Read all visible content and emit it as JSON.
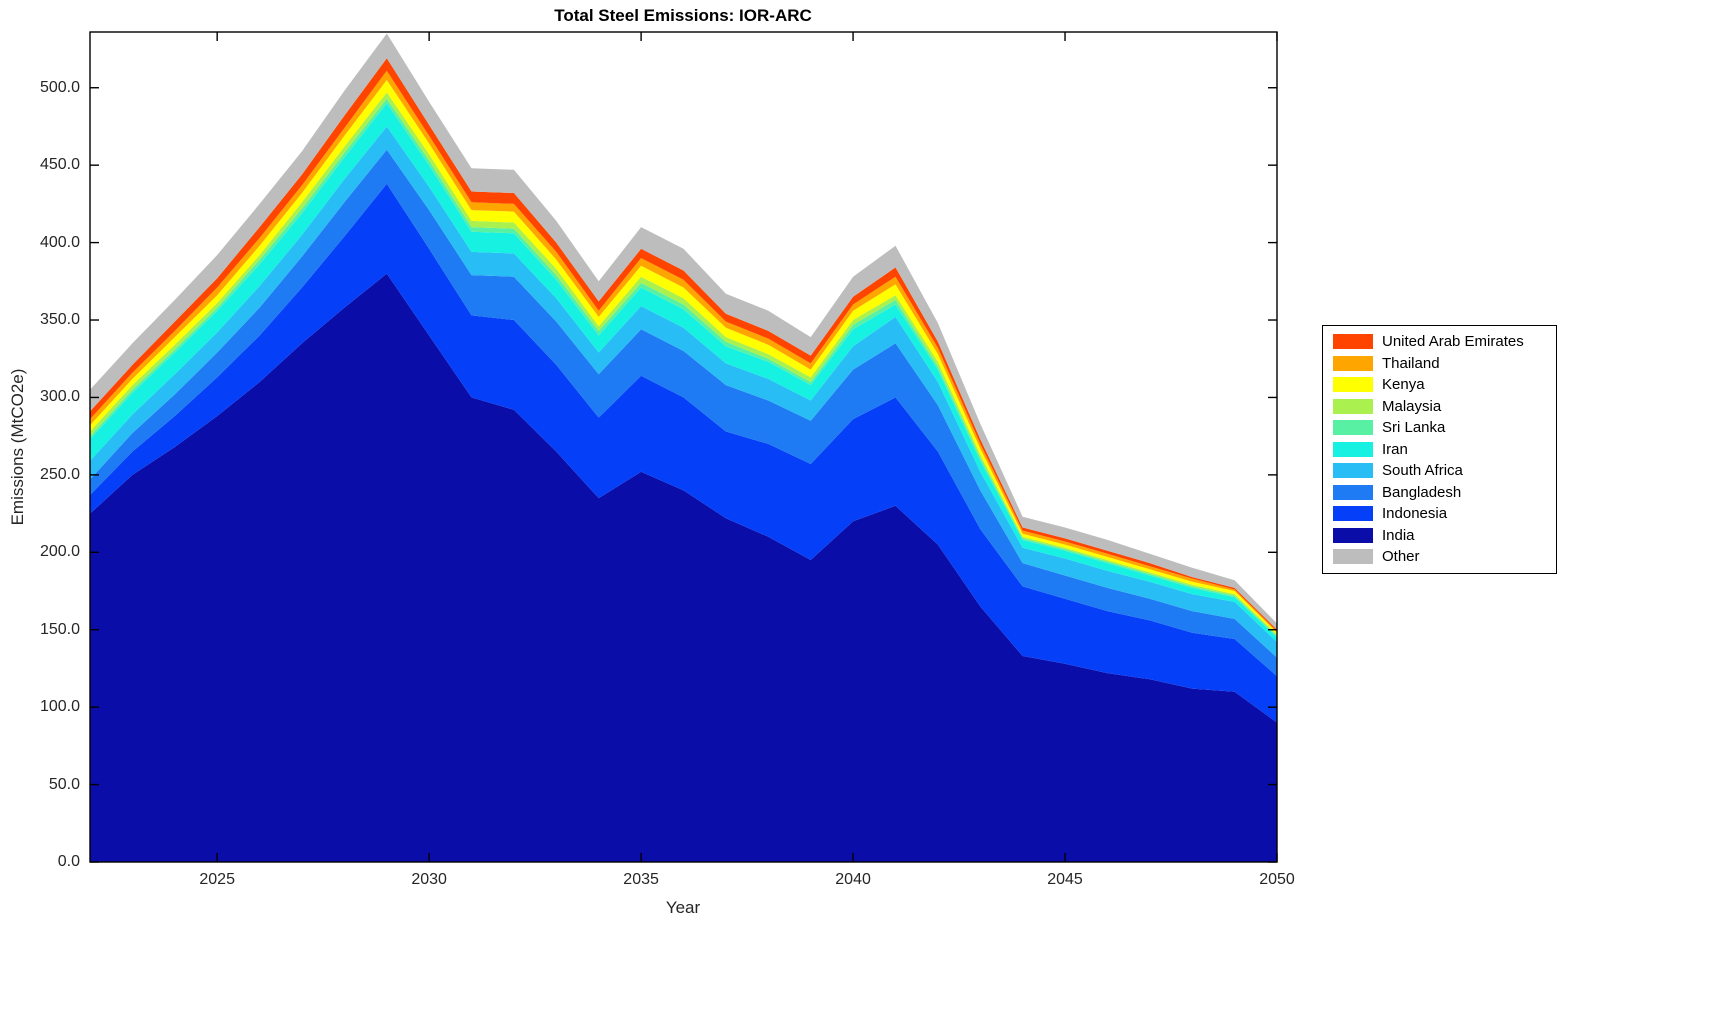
{
  "chart_data": {
    "type": "area",
    "stacked": true,
    "title": "Total Steel Emissions: IOR-ARC",
    "xlabel": "Year",
    "ylabel": "Emissions (MtCO2e)",
    "xlim": [
      2022,
      2050
    ],
    "ylim": [
      0,
      536
    ],
    "grid": false,
    "xticks": [
      2025,
      2030,
      2035,
      2040,
      2045,
      2050
    ],
    "yticks": [
      0,
      50,
      100,
      150,
      200,
      250,
      300,
      350,
      400,
      450,
      500
    ],
    "ytick_labels": [
      "0.0",
      "50.0",
      "100.0",
      "150.0",
      "200.0",
      "250.0",
      "300.0",
      "350.0",
      "400.0",
      "450.0",
      "500.0"
    ],
    "x": [
      2022,
      2023,
      2024,
      2025,
      2026,
      2027,
      2028,
      2029,
      2030,
      2031,
      2032,
      2033,
      2034,
      2035,
      2036,
      2037,
      2038,
      2039,
      2040,
      2041,
      2042,
      2043,
      2044,
      2045,
      2046,
      2047,
      2048,
      2049,
      2050
    ],
    "series": [
      {
        "name": "India",
        "color": "#0b0da8",
        "values": [
          225,
          250,
          268,
          288,
          310,
          335,
          358,
          380,
          340,
          300,
          292,
          265,
          235,
          252,
          240,
          222,
          210,
          195,
          220,
          230,
          205,
          165,
          133,
          128,
          122,
          118,
          112,
          110,
          90
        ]
      },
      {
        "name": "Indonesia",
        "color": "#0540f8",
        "values": [
          12,
          15,
          20,
          25,
          30,
          36,
          46,
          58,
          56,
          53,
          58,
          56,
          52,
          62,
          60,
          56,
          60,
          62,
          66,
          70,
          60,
          50,
          45,
          42,
          40,
          38,
          36,
          34,
          30
        ]
      },
      {
        "name": "Bangladesh",
        "color": "#1e7bf4",
        "values": [
          10,
          12,
          14,
          16,
          18,
          20,
          22,
          22,
          25,
          26,
          28,
          28,
          28,
          30,
          30,
          30,
          28,
          28,
          32,
          35,
          30,
          25,
          15,
          15,
          15,
          14,
          14,
          13,
          12
        ]
      },
      {
        "name": "South Africa",
        "color": "#29bdf6",
        "values": [
          12,
          12,
          13,
          13,
          14,
          14,
          15,
          15,
          15,
          15,
          15,
          15,
          14,
          15,
          15,
          14,
          14,
          13,
          15,
          17,
          15,
          12,
          10,
          11,
          11,
          11,
          11,
          11,
          10
        ]
      },
      {
        "name": "Iran",
        "color": "#17f1e2",
        "values": [
          14,
          14,
          14,
          14,
          14,
          14,
          14,
          15,
          14,
          13,
          13,
          12,
          11,
          12,
          12,
          11,
          11,
          10,
          11,
          8,
          8,
          7,
          5,
          5,
          5,
          4,
          4,
          3,
          3
        ]
      },
      {
        "name": "Sri Lanka",
        "color": "#58f1a4",
        "values": [
          2,
          2,
          2,
          2,
          3,
          3,
          3,
          3,
          3,
          3,
          3,
          3,
          3,
          3,
          3,
          3,
          2,
          2,
          3,
          3,
          2,
          2,
          1,
          1,
          1,
          1,
          1,
          1,
          1
        ]
      },
      {
        "name": "Malaysia",
        "color": "#aaf04e",
        "values": [
          3,
          3,
          3,
          3,
          3,
          4,
          4,
          4,
          4,
          4,
          4,
          4,
          3,
          4,
          4,
          3,
          3,
          3,
          3,
          3,
          3,
          2,
          1,
          1,
          1,
          1,
          1,
          1,
          1
        ]
      },
      {
        "name": "Kenya",
        "color": "#ffff00",
        "values": [
          4,
          4,
          5,
          5,
          6,
          6,
          7,
          8,
          7,
          7,
          7,
          6,
          6,
          7,
          7,
          6,
          6,
          5,
          6,
          7,
          5,
          4,
          2,
          2,
          2,
          2,
          2,
          2,
          1
        ]
      },
      {
        "name": "Thailand",
        "color": "#ffa500",
        "values": [
          4,
          4,
          4,
          5,
          5,
          5,
          5,
          6,
          5,
          5,
          5,
          5,
          4,
          5,
          5,
          4,
          4,
          4,
          4,
          5,
          4,
          3,
          2,
          2,
          2,
          2,
          2,
          1,
          1
        ]
      },
      {
        "name": "United Arab Emirates",
        "color": "#ff4400",
        "values": [
          5,
          5,
          6,
          6,
          7,
          7,
          8,
          8,
          7,
          7,
          7,
          6,
          6,
          6,
          6,
          5,
          5,
          5,
          5,
          6,
          4,
          3,
          2,
          2,
          2,
          2,
          1,
          1,
          1
        ]
      },
      {
        "name": "Other",
        "color": "#bdbdbd",
        "values": [
          14,
          14,
          14,
          15,
          15,
          15,
          16,
          16,
          15,
          15,
          15,
          14,
          13,
          14,
          14,
          13,
          13,
          12,
          13,
          14,
          12,
          10,
          7,
          7,
          7,
          6,
          6,
          5,
          4
        ]
      }
    ],
    "legend": {
      "position": "right",
      "entries_top_to_bottom": [
        "United Arab Emirates",
        "Thailand",
        "Kenya",
        "Malaysia",
        "Sri Lanka",
        "Iran",
        "South Africa",
        "Bangladesh",
        "Indonesia",
        "India",
        "Other"
      ]
    }
  }
}
